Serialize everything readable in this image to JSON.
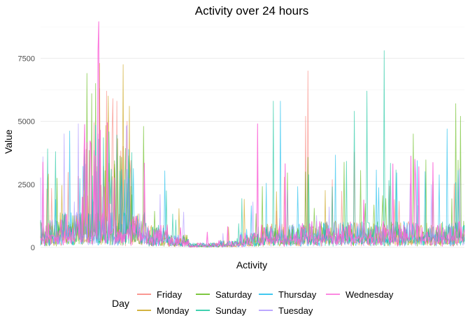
{
  "chart_data": {
    "type": "line",
    "title": "Activity over 24 hours",
    "xlabel": "Activity",
    "ylabel": "Value",
    "ylim": [
      0,
      9200
    ],
    "yticks": [
      0,
      2500,
      5000,
      7500
    ],
    "ytick_labels": [
      "0",
      "2500",
      "5000",
      "7500"
    ],
    "grid": true,
    "legend": {
      "title": "Day",
      "placement": "bottom",
      "entries": [
        "Friday",
        "Monday",
        "Saturday",
        "Sunday",
        "Thursday",
        "Tuesday",
        "Wednesday"
      ]
    },
    "colors": {
      "Friday": "#F8766D",
      "Monday": "#C49A00",
      "Saturday": "#53B400",
      "Sunday": "#00C094",
      "Thursday": "#00B6EB",
      "Tuesday": "#A58AFF",
      "Wednesday": "#FB61D7"
    },
    "series": [
      {
        "name": "Friday",
        "peaks": [
          [
            0.14,
            6300
          ],
          [
            0.155,
            6200
          ],
          [
            0.17,
            5900
          ],
          [
            0.18,
            5800
          ],
          [
            0.205,
            5000
          ],
          [
            0.63,
            7000
          ],
          [
            0.625,
            5200
          ]
        ]
      },
      {
        "name": "Monday",
        "peaks": [
          [
            0.14,
            7300
          ],
          [
            0.195,
            7250
          ],
          [
            0.16,
            6000
          ],
          [
            0.21,
            5600
          ]
        ]
      },
      {
        "name": "Saturday",
        "peaks": [
          [
            0.11,
            6900
          ],
          [
            0.13,
            6500
          ],
          [
            0.12,
            6100
          ],
          [
            0.98,
            5700
          ],
          [
            0.99,
            5200
          ],
          [
            0.88,
            4500
          ]
        ]
      },
      {
        "name": "Sunday",
        "peaks": [
          [
            0.81,
            7800
          ],
          [
            0.77,
            6200
          ],
          [
            0.55,
            5800
          ],
          [
            0.74,
            5400
          ],
          [
            0.035,
            3800
          ]
        ]
      },
      {
        "name": "Thursday",
        "peaks": [
          [
            0.565,
            5800
          ],
          [
            0.565,
            5000
          ],
          [
            0.96,
            4700
          ]
        ]
      },
      {
        "name": "Tuesday",
        "peaks": [
          [
            0.135,
            4500
          ],
          [
            0.14,
            3700
          ],
          [
            0.105,
            3300
          ]
        ]
      },
      {
        "name": "Wednesday",
        "peaks": [
          [
            0.138,
            8950
          ],
          [
            0.136,
            7800
          ],
          [
            0.512,
            4900
          ]
        ]
      }
    ]
  }
}
